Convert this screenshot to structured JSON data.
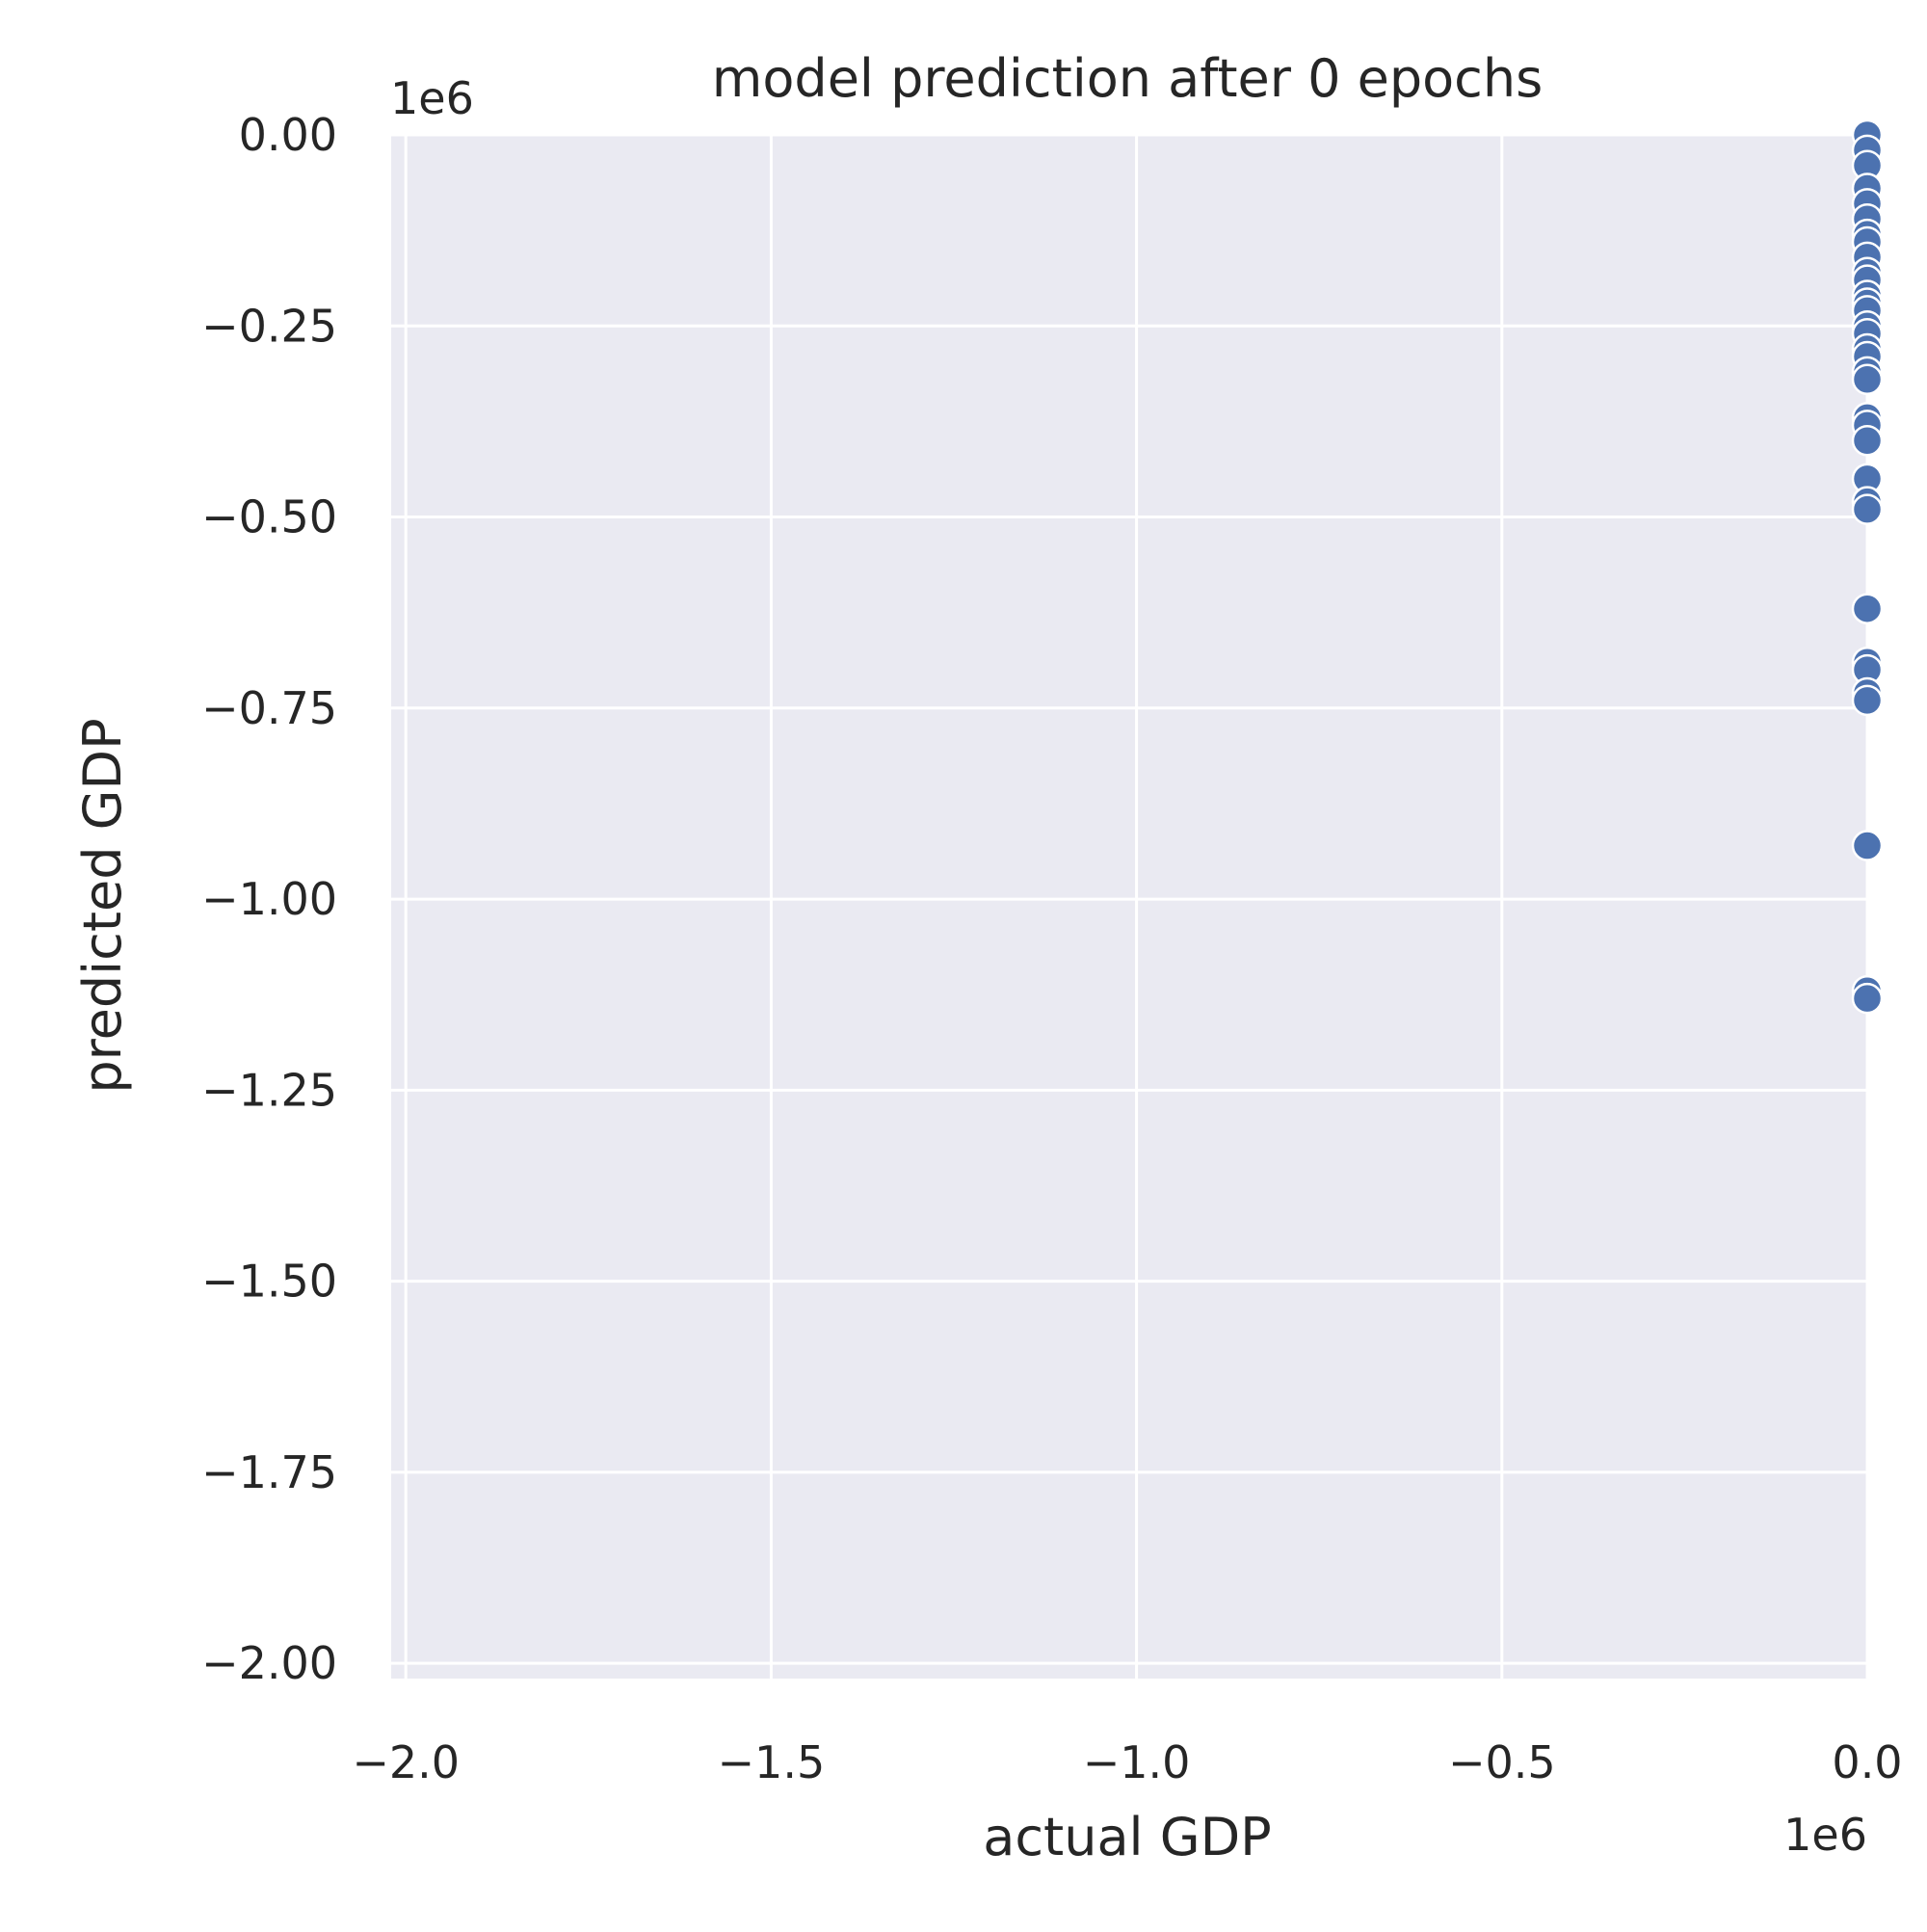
{
  "chart_data": {
    "type": "scatter",
    "title": "model prediction after 0 epochs",
    "xlabel": "actual GDP",
    "ylabel": "predicted GDP",
    "x_offset_label": "1e6",
    "y_offset_label": "1e6",
    "xlim": [
      -2.02,
      0.0
    ],
    "ylim": [
      -2.02,
      0.0
    ],
    "x_ticks": [
      -2.0,
      -1.5,
      -1.0,
      -0.5,
      0.0
    ],
    "y_ticks": [
      0.0,
      -0.25,
      -0.5,
      -0.75,
      -1.0,
      -1.25,
      -1.5,
      -1.75,
      -2.0
    ],
    "x_tick_labels": [
      "−2.0",
      "−1.5",
      "−1.0",
      "−0.5",
      "0.0"
    ],
    "y_tick_labels": [
      "0.00",
      "−0.25",
      "−0.50",
      "−0.75",
      "−1.00",
      "−1.25",
      "−1.50",
      "−1.75",
      "−2.00"
    ],
    "grid": true,
    "background_color": "#eaeaf2",
    "grid_color": "#ffffff",
    "marker_color": "#4c72b0",
    "points": [
      {
        "x": 0.0,
        "y": 0.0
      },
      {
        "x": 0.0,
        "y": -0.02
      },
      {
        "x": 0.0,
        "y": -0.04
      },
      {
        "x": 0.0,
        "y": -0.07
      },
      {
        "x": 0.0,
        "y": -0.09
      },
      {
        "x": 0.0,
        "y": -0.11
      },
      {
        "x": 0.0,
        "y": -0.13
      },
      {
        "x": 0.0,
        "y": -0.14
      },
      {
        "x": 0.0,
        "y": -0.16
      },
      {
        "x": 0.0,
        "y": -0.18
      },
      {
        "x": 0.0,
        "y": -0.19
      },
      {
        "x": 0.0,
        "y": -0.21
      },
      {
        "x": 0.0,
        "y": -0.22
      },
      {
        "x": 0.0,
        "y": -0.23
      },
      {
        "x": 0.0,
        "y": -0.25
      },
      {
        "x": 0.0,
        "y": -0.26
      },
      {
        "x": 0.0,
        "y": -0.28
      },
      {
        "x": 0.0,
        "y": -0.29
      },
      {
        "x": 0.0,
        "y": -0.31
      },
      {
        "x": 0.0,
        "y": -0.32
      },
      {
        "x": 0.0,
        "y": -0.37
      },
      {
        "x": 0.0,
        "y": -0.38
      },
      {
        "x": 0.0,
        "y": -0.4
      },
      {
        "x": 0.0,
        "y": -0.45
      },
      {
        "x": 0.0,
        "y": -0.48
      },
      {
        "x": 0.0,
        "y": -0.49
      },
      {
        "x": 0.0,
        "y": -0.62
      },
      {
        "x": 0.0,
        "y": -0.69
      },
      {
        "x": 0.0,
        "y": -0.7
      },
      {
        "x": 0.0,
        "y": -0.73
      },
      {
        "x": 0.0,
        "y": -0.74
      },
      {
        "x": 0.0,
        "y": -0.93
      },
      {
        "x": 0.0,
        "y": -1.12
      },
      {
        "x": 0.0,
        "y": -1.13
      }
    ]
  }
}
